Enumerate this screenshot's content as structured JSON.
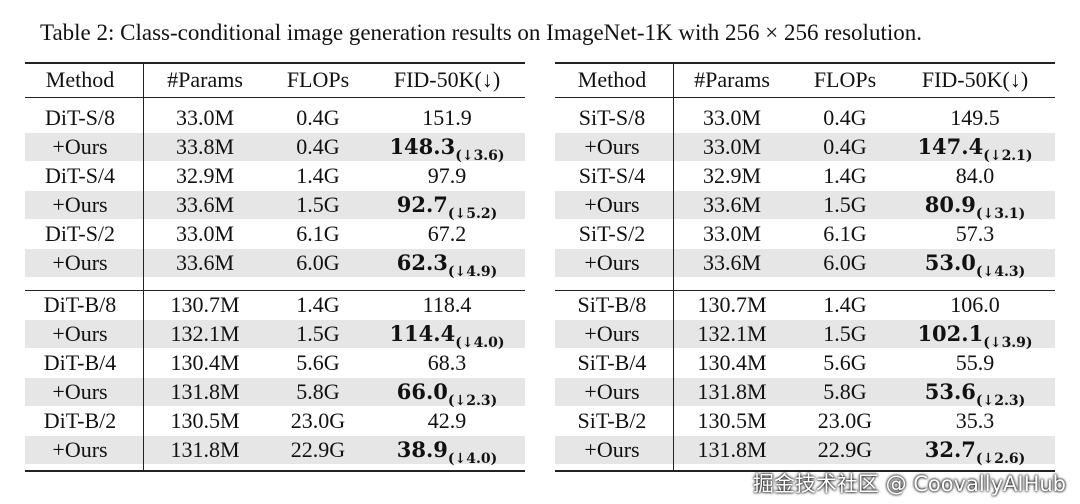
{
  "caption": "Table 2: Class-conditional image generation results on ImageNet-1K with 256 × 256 resolution.",
  "tables": [
    {
      "header": [
        "Method",
        "#Params",
        "FLOPs",
        "FID-50K(↓)"
      ],
      "rows": [
        [
          "DiT-S/8",
          "33.0M",
          "0.4G",
          {
            "main": "151.9"
          }
        ],
        [
          "+Ours",
          "33.8M",
          "0.4G",
          {
            "main": "148.3",
            "sub": "(↓3.6)"
          }
        ],
        [
          "DiT-S/4",
          "32.9M",
          "1.4G",
          {
            "main": "97.9"
          }
        ],
        [
          "+Ours",
          "33.6M",
          "1.5G",
          {
            "main": "92.7",
            "sub": "(↓5.2)"
          }
        ],
        [
          "DiT-S/2",
          "33.0M",
          "6.1G",
          {
            "main": "67.2"
          }
        ],
        [
          "+Ours",
          "33.6M",
          "6.0G",
          {
            "main": "62.3",
            "sub": "(↓4.9)"
          }
        ],
        [
          "DiT-B/8",
          "130.7M",
          "1.4G",
          {
            "main": "118.4"
          }
        ],
        [
          "+Ours",
          "132.1M",
          "1.5G",
          {
            "main": "114.4",
            "sub": "(↓4.0)"
          }
        ],
        [
          "DiT-B/4",
          "130.4M",
          "5.6G",
          {
            "main": "68.3"
          }
        ],
        [
          "+Ours",
          "131.8M",
          "5.8G",
          {
            "main": "66.0",
            "sub": "(↓2.3)"
          }
        ],
        [
          "DiT-B/2",
          "130.5M",
          "23.0G",
          {
            "main": "42.9"
          }
        ],
        [
          "+Ours",
          "131.8M",
          "22.9G",
          {
            "main": "38.9",
            "sub": "(↓4.0)"
          }
        ]
      ]
    },
    {
      "header": [
        "Method",
        "#Params",
        "FLOPs",
        "FID-50K(↓)"
      ],
      "rows": [
        [
          "SiT-S/8",
          "33.0M",
          "0.4G",
          {
            "main": "149.5"
          }
        ],
        [
          "+Ours",
          "33.0M",
          "0.4G",
          {
            "main": "147.4",
            "sub": "(↓2.1)"
          }
        ],
        [
          "SiT-S/4",
          "32.9M",
          "1.4G",
          {
            "main": "84.0"
          }
        ],
        [
          "+Ours",
          "33.6M",
          "1.5G",
          {
            "main": "80.9",
            "sub": "(↓3.1)"
          }
        ],
        [
          "SiT-S/2",
          "33.0M",
          "6.1G",
          {
            "main": "57.3"
          }
        ],
        [
          "+Ours",
          "33.6M",
          "6.0G",
          {
            "main": "53.0",
            "sub": "(↓4.3)"
          }
        ],
        [
          "SiT-B/8",
          "130.7M",
          "1.4G",
          {
            "main": "106.0"
          }
        ],
        [
          "+Ours",
          "132.1M",
          "1.5G",
          {
            "main": "102.1",
            "sub": "(↓3.9)"
          }
        ],
        [
          "SiT-B/4",
          "130.4M",
          "5.6G",
          {
            "main": "55.9"
          }
        ],
        [
          "+Ours",
          "131.8M",
          "5.8G",
          {
            "main": "53.6",
            "sub": "(↓2.3)"
          }
        ],
        [
          "SiT-B/2",
          "130.5M",
          "23.0G",
          {
            "main": "35.3"
          }
        ],
        [
          "+Ours",
          "131.8M",
          "22.9G",
          {
            "main": "32.7",
            "sub": "(↓2.6)"
          }
        ]
      ]
    }
  ],
  "watermark": "掘金技术社区 @ CoovallyAIHub"
}
